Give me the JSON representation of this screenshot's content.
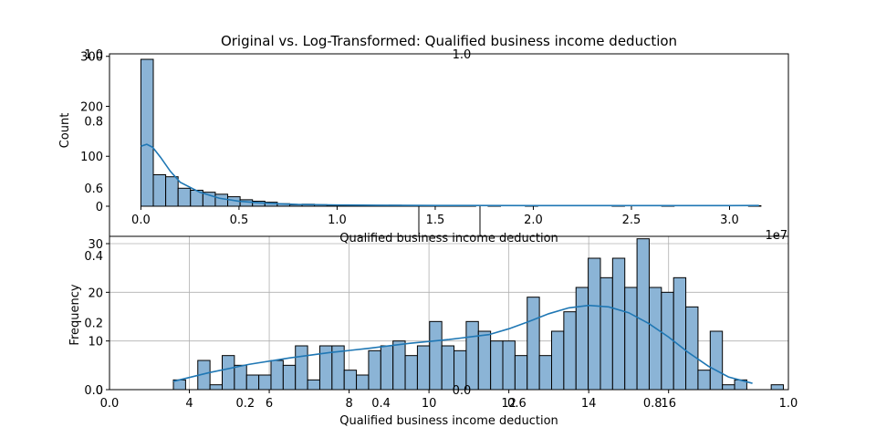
{
  "figure": {
    "title": "Original vs. Log-Transformed: Qualified business income deduction"
  },
  "chart_data": [
    {
      "type": "bar",
      "subtype": "histogram_with_kde",
      "title": "Original vs. Log-Transformed: Qualified business income deduction",
      "xlabel": "Qualified business income deduction",
      "ylabel": "Count",
      "x_scale_label": "1e7",
      "xlim": [
        -0.16,
        3.3
      ],
      "ylim": [
        0,
        305
      ],
      "x_ticks": [
        0.0,
        0.5,
        1.0,
        1.5,
        2.0,
        2.5,
        3.0
      ],
      "x_tick_labels": [
        "0.0",
        "0.5",
        "1.0",
        "1.5",
        "2.0",
        "2.5",
        "3.0"
      ],
      "y_ticks": [
        0,
        100,
        200,
        300
      ],
      "y_tick_labels": [
        "0",
        "100",
        "200",
        "300"
      ],
      "bin_start": 0.0,
      "bin_width": 0.0632,
      "counts": [
        294,
        63,
        59,
        36,
        32,
        28,
        24,
        19,
        13,
        10,
        8,
        5,
        3,
        4,
        3,
        2,
        2,
        2,
        1,
        1,
        2,
        1,
        1,
        1,
        1,
        1,
        1,
        0,
        1,
        0,
        0,
        1,
        0,
        0,
        0,
        0,
        0,
        0,
        1,
        0,
        0,
        0,
        1,
        0,
        0,
        0,
        0,
        0,
        0,
        1
      ],
      "kde": {
        "x": [
          0.0,
          0.03,
          0.06,
          0.1,
          0.15,
          0.2,
          0.3,
          0.4,
          0.5,
          0.6,
          0.7,
          0.8,
          1.0,
          1.2,
          1.5,
          2.0,
          2.5,
          3.0,
          3.15
        ],
        "y": [
          120,
          124,
          118,
          98,
          70,
          48,
          28,
          16,
          10,
          7,
          5,
          3.5,
          2.5,
          2,
          1.5,
          1.2,
          1.2,
          1.2,
          1.5
        ]
      },
      "grid": false,
      "bar_color": "#8bb4d6",
      "line_color": "#1f77b4"
    },
    {
      "type": "bar",
      "subtype": "histogram_with_kde",
      "xlabel": "Qualified business income deduction",
      "ylabel": "Frequency",
      "xlim": [
        2.0,
        19.0
      ],
      "ylim": [
        0,
        31.5
      ],
      "x_ticks": [
        4,
        6,
        8,
        10,
        12,
        14,
        16
      ],
      "x_tick_labels": [
        "4",
        "6",
        "8",
        "10",
        "12",
        "14",
        "16"
      ],
      "y_ticks": [
        0,
        10,
        20,
        30
      ],
      "y_tick_labels": [
        "0",
        "10",
        "20",
        "30"
      ],
      "bin_start": 3.6,
      "bin_width": 0.3055,
      "counts": [
        2,
        0,
        6,
        1,
        7,
        5,
        3,
        3,
        6,
        5,
        9,
        2,
        9,
        9,
        4,
        3,
        8,
        9,
        10,
        7,
        9,
        14,
        9,
        8,
        14,
        12,
        10,
        10,
        7,
        19,
        7,
        12,
        16,
        21,
        27,
        23,
        27,
        21,
        31,
        21,
        20,
        23,
        17,
        4,
        12,
        1,
        2,
        0,
        0,
        1
      ],
      "kde": {
        "x": [
          3.6,
          4.5,
          5.5,
          6.5,
          7.5,
          8.5,
          9.5,
          10.5,
          11.5,
          12.0,
          12.5,
          13.0,
          13.5,
          14.0,
          14.5,
          15.0,
          15.5,
          16.0,
          16.5,
          17.0,
          17.5,
          18.1
        ],
        "y": [
          1.7,
          3.5,
          5.2,
          6.5,
          7.6,
          8.5,
          9.5,
          10.3,
          11.3,
          12.5,
          14.0,
          15.6,
          16.8,
          17.3,
          17.0,
          15.8,
          13.6,
          10.8,
          7.6,
          4.8,
          2.6,
          1.3
        ]
      },
      "grid": true,
      "bar_color": "#8bb4d6",
      "line_color": "#1f77b4"
    },
    {
      "type": "line",
      "note_artifacts": "stray empty axes drawn on top of the figure",
      "ylim": [
        0,
        1.0
      ],
      "y_ticks": [
        0.0,
        0.2,
        0.4,
        0.6,
        0.8,
        1.0
      ],
      "y_tick_labels": [
        "0.0",
        "0.2",
        "0.4",
        "0.6",
        "0.8",
        "1.0"
      ],
      "x_ticks": [
        0.0,
        0.2,
        0.4,
        0.6,
        0.8,
        1.0
      ],
      "x_tick_labels": [
        "0.0",
        "0.2",
        "0.4",
        "0.6",
        "0.8",
        "1.0"
      ],
      "center_tick_label": "0.0",
      "center_top_label": "1.0"
    }
  ]
}
